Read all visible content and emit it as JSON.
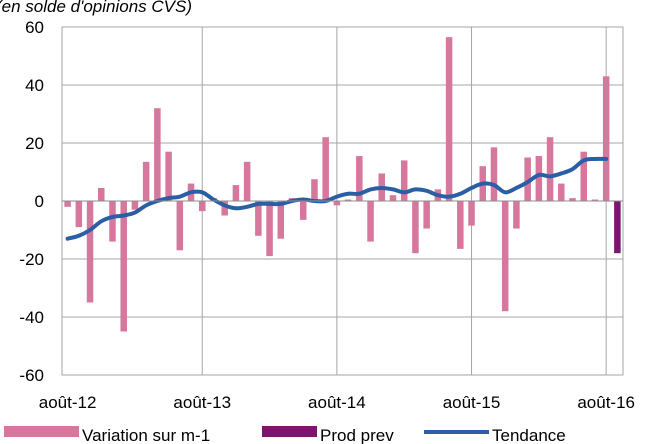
{
  "chart_data": {
    "type": "bar",
    "subtitle": "(en solde d'opinions CVS)",
    "ylim": [
      -60,
      60
    ],
    "yticks": [
      -60,
      -40,
      -20,
      0,
      20,
      40,
      60
    ],
    "xticks": [
      "août-12",
      "août-13",
      "août-14",
      "août-15",
      "août-16"
    ],
    "grid": true,
    "legend_position": "bottom",
    "colors": {
      "variation": "#d6779d",
      "prod": "#7b1570",
      "tendance": "#2a5fa6"
    },
    "categories": [
      "2012-08",
      "2012-09",
      "2012-10",
      "2012-11",
      "2012-12",
      "2013-01",
      "2013-02",
      "2013-03",
      "2013-04",
      "2013-05",
      "2013-06",
      "2013-07",
      "2013-08",
      "2013-09",
      "2013-10",
      "2013-11",
      "2013-12",
      "2014-01",
      "2014-02",
      "2014-03",
      "2014-04",
      "2014-05",
      "2014-06",
      "2014-07",
      "2014-08",
      "2014-09",
      "2014-10",
      "2014-11",
      "2014-12",
      "2015-01",
      "2015-02",
      "2015-03",
      "2015-04",
      "2015-05",
      "2015-06",
      "2015-07",
      "2015-08",
      "2015-09",
      "2015-10",
      "2015-11",
      "2015-12",
      "2016-01",
      "2016-02",
      "2016-03",
      "2016-04",
      "2016-05",
      "2016-06",
      "2016-07",
      "2016-08",
      "2016-09"
    ],
    "series": [
      {
        "name": "Variation sur m-1",
        "type": "bar",
        "values": [
          -2,
          -9,
          -35,
          4.5,
          -14,
          -45,
          -3,
          13.5,
          32,
          17,
          -17,
          6,
          -3.5,
          1,
          -5,
          5.5,
          13.5,
          -12,
          -19,
          -13,
          1,
          -6.5,
          7.5,
          22,
          -1.5,
          0.5,
          15.5,
          -14,
          9.5,
          2,
          14,
          -18,
          -9.5,
          4,
          56.5,
          -16.5,
          -8.5,
          12,
          18.5,
          -38,
          -9.5,
          15,
          15.5,
          22,
          6,
          1,
          17,
          0.5,
          43,
          null
        ]
      },
      {
        "name": "Prod prev",
        "type": "bar",
        "values": [
          null,
          null,
          null,
          null,
          null,
          null,
          null,
          null,
          null,
          null,
          null,
          null,
          null,
          null,
          null,
          null,
          null,
          null,
          null,
          null,
          null,
          null,
          null,
          null,
          null,
          null,
          null,
          null,
          null,
          null,
          null,
          null,
          null,
          null,
          null,
          null,
          null,
          null,
          null,
          null,
          null,
          null,
          null,
          null,
          null,
          null,
          null,
          null,
          null,
          -18
        ]
      },
      {
        "name": "Tendance",
        "type": "line",
        "values": [
          -13,
          -12,
          -10,
          -7,
          -5.5,
          -5,
          -4,
          -1.5,
          0,
          1,
          1.5,
          3,
          3,
          0.5,
          -1.5,
          -2.5,
          -2,
          -1,
          -1,
          -1,
          0,
          0.5,
          0,
          0,
          1.5,
          2.5,
          2.5,
          4,
          4.5,
          4,
          3,
          4,
          3.5,
          2,
          1.5,
          2.5,
          4.5,
          6,
          5.5,
          3,
          4.5,
          6.5,
          9,
          8.5,
          9.5,
          11,
          14,
          14.5,
          14.5,
          null
        ]
      }
    ]
  }
}
